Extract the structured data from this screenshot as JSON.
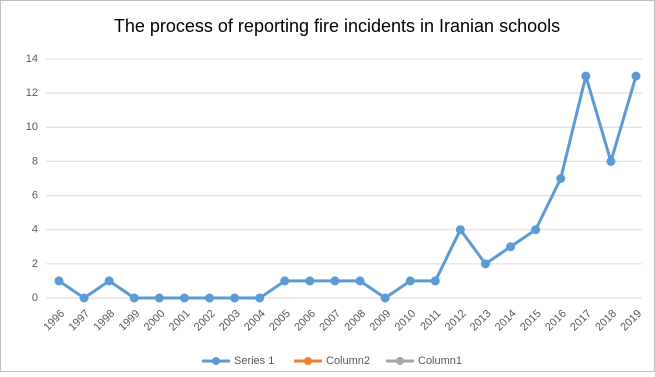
{
  "chart_data": {
    "type": "line",
    "title": "The process of reporting fire incidents in Iranian schools",
    "categories": [
      "1996",
      "1997",
      "1998",
      "1999",
      "2000",
      "2001",
      "2002",
      "2003",
      "2004",
      "2005",
      "2006",
      "2007",
      "2008",
      "2009",
      "2010",
      "2011",
      "2012",
      "2013",
      "2014",
      "2015",
      "2016",
      "2017",
      "2018",
      "2019"
    ],
    "series": [
      {
        "name": "Series 1",
        "color": "#5b9bd5",
        "values": [
          1,
          0,
          1,
          0,
          0,
          0,
          0,
          0,
          0,
          1,
          1,
          1,
          1,
          0,
          1,
          1,
          4,
          2,
          3,
          4,
          7,
          13,
          8,
          13
        ]
      },
      {
        "name": "Column2",
        "color": "#ed7d31",
        "values": [
          null,
          null,
          null,
          null,
          null,
          null,
          null,
          null,
          null,
          null,
          null,
          null,
          null,
          null,
          null,
          null,
          null,
          null,
          null,
          null,
          null,
          null,
          null,
          null
        ]
      },
      {
        "name": "Column1",
        "color": "#a5a5a5",
        "values": [
          null,
          null,
          null,
          null,
          null,
          null,
          null,
          null,
          null,
          null,
          null,
          null,
          null,
          null,
          null,
          null,
          null,
          null,
          null,
          null,
          null,
          null,
          null,
          null
        ]
      }
    ],
    "ylim": [
      0,
      14
    ],
    "yticks": [
      0,
      2,
      4,
      6,
      8,
      10,
      12,
      14
    ],
    "grid": true,
    "legend": "bottom"
  }
}
